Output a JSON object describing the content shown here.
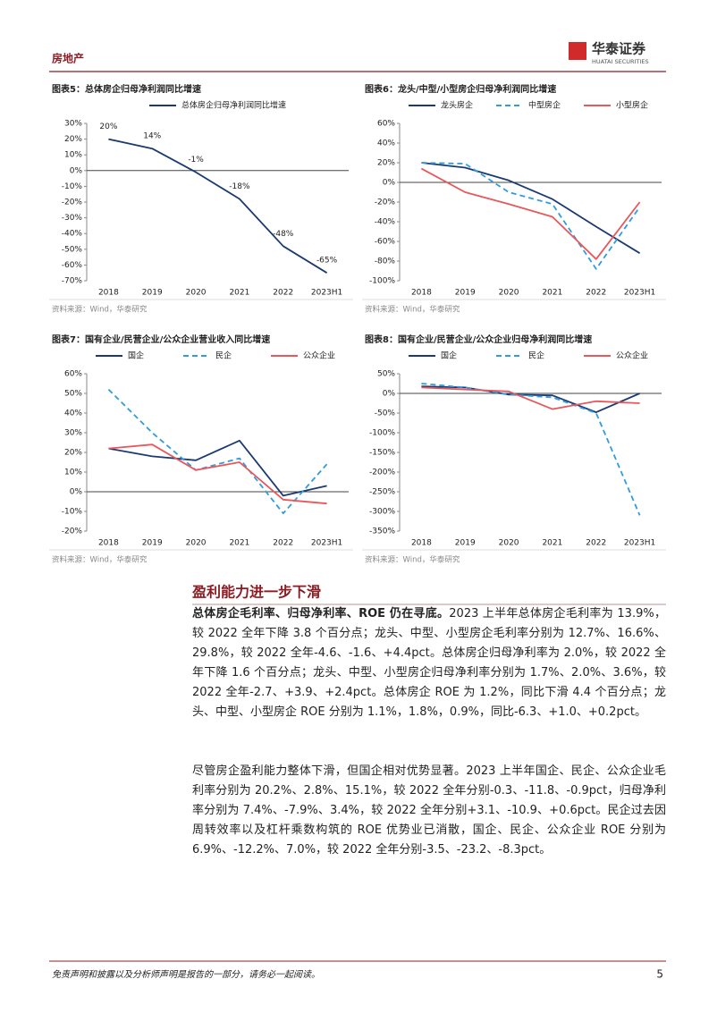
{
  "header": {
    "sector": "房地产",
    "logo_cn": "华泰证券",
    "logo_en": "HUATAI SECURITIES"
  },
  "chart_data": [
    {
      "type": "line",
      "title": "图表5：总体房企归母净利润同比增速",
      "categories": [
        "2018",
        "2019",
        "2020",
        "2021",
        "2022",
        "2023H1"
      ],
      "series": [
        {
          "name": "总体房企归母净利润同比增速",
          "color": "#1b3a73",
          "style": "solid",
          "values": [
            20,
            14,
            -1,
            -18,
            -48,
            -65
          ],
          "value_labels": [
            "20%",
            "14%",
            "-1%",
            "-18%",
            "-48%",
            "-65%"
          ]
        }
      ],
      "ylim": [
        -70,
        30
      ],
      "yticks": [
        {
          "value": -70,
          "label": "-70%"
        },
        {
          "value": -60,
          "label": "-60%"
        },
        {
          "value": -50,
          "label": "-50%"
        },
        {
          "value": -40,
          "label": "-40%"
        },
        {
          "value": -30,
          "label": "-30%"
        },
        {
          "value": -20,
          "label": "-20%"
        },
        {
          "value": -10,
          "label": "-10%"
        },
        {
          "value": 0,
          "label": "0%"
        },
        {
          "value": 10,
          "label": "10%"
        },
        {
          "value": 20,
          "label": "20%"
        },
        {
          "value": 30,
          "label": "30%"
        }
      ],
      "source": "资料来源：Wind，华泰研究"
    },
    {
      "type": "line",
      "title": "图表6：龙头/中型/小型房企归母净利润同比增速",
      "categories": [
        "2018",
        "2019",
        "2020",
        "2021",
        "2022",
        "2023H1"
      ],
      "series": [
        {
          "name": "龙头房企",
          "color": "#1b3a73",
          "style": "solid",
          "values": [
            20,
            15,
            2,
            -17,
            -45,
            -72
          ]
        },
        {
          "name": "中型房企",
          "color": "#2f9be0",
          "style": "dashed",
          "values": [
            20,
            19,
            -10,
            -22,
            -88,
            -25
          ]
        },
        {
          "name": "小型房企",
          "color": "#e8575a",
          "style": "solid",
          "values": [
            14,
            -10,
            -22,
            -35,
            -78,
            -20
          ]
        }
      ],
      "ylim": [
        -100,
        60
      ],
      "yticks": [
        {
          "value": -100,
          "label": "-100%"
        },
        {
          "value": -80,
          "label": "-80%"
        },
        {
          "value": -60,
          "label": "-60%"
        },
        {
          "value": -40,
          "label": "-40%"
        },
        {
          "value": -20,
          "label": "-20%"
        },
        {
          "value": 0,
          "label": "0%"
        },
        {
          "value": 20,
          "label": "20%"
        },
        {
          "value": 40,
          "label": "40%"
        },
        {
          "value": 60,
          "label": "60%"
        }
      ],
      "source": "资料来源：Wind，华泰研究"
    },
    {
      "type": "line",
      "title": "图表7：国有企业/民营企业/公众企业营业收入同比增速",
      "categories": [
        "2018",
        "2019",
        "2020",
        "2021",
        "2022",
        "2023H1"
      ],
      "series": [
        {
          "name": "国企",
          "color": "#1b3a73",
          "style": "solid",
          "values": [
            22,
            18,
            16,
            26,
            -2,
            3
          ]
        },
        {
          "name": "民企",
          "color": "#2f9be0",
          "style": "dashed",
          "values": [
            52,
            30,
            11,
            17,
            -11,
            14
          ]
        },
        {
          "name": "公众企业",
          "color": "#e8575a",
          "style": "solid",
          "values": [
            22,
            24,
            11,
            15,
            -4,
            -6
          ]
        }
      ],
      "ylim": [
        -20,
        60
      ],
      "yticks": [
        {
          "value": -20,
          "label": "-20%"
        },
        {
          "value": -10,
          "label": "-10%"
        },
        {
          "value": 0,
          "label": "0%"
        },
        {
          "value": 10,
          "label": "10%"
        },
        {
          "value": 20,
          "label": "20%"
        },
        {
          "value": 30,
          "label": "30%"
        },
        {
          "value": 40,
          "label": "40%"
        },
        {
          "value": 50,
          "label": "50%"
        },
        {
          "value": 60,
          "label": "60%"
        }
      ],
      "source": "资料来源：Wind，华泰研究"
    },
    {
      "type": "line",
      "title": "图表8：国有企业/民营企业/公众企业归母净利润同比增速",
      "categories": [
        "2018",
        "2019",
        "2020",
        "2021",
        "2022",
        "2023H1"
      ],
      "series": [
        {
          "name": "国企",
          "color": "#1b3a73",
          "style": "solid",
          "values": [
            18,
            15,
            -3,
            -5,
            -48,
            0
          ]
        },
        {
          "name": "民企",
          "color": "#2f9be0",
          "style": "dashed",
          "values": [
            25,
            15,
            -3,
            -10,
            -50,
            -310
          ]
        },
        {
          "name": "公众企业",
          "color": "#e8575a",
          "style": "solid",
          "values": [
            15,
            10,
            5,
            -40,
            -20,
            -25
          ]
        }
      ],
      "ylim": [
        -350,
        50
      ],
      "yticks": [
        {
          "value": -350,
          "label": "-350%"
        },
        {
          "value": -300,
          "label": "-300%"
        },
        {
          "value": -250,
          "label": "-250%"
        },
        {
          "value": -200,
          "label": "-200%"
        },
        {
          "value": -150,
          "label": "-150%"
        },
        {
          "value": -100,
          "label": "-100%"
        },
        {
          "value": -50,
          "label": "-50%"
        },
        {
          "value": 0,
          "label": "0%"
        },
        {
          "value": 50,
          "label": "50%"
        }
      ],
      "source": "资料来源：Wind，华泰研究"
    }
  ],
  "section": {
    "heading": "盈利能力进一步下滑",
    "paragraphs": [
      {
        "lead": "总体房企毛利率、归母净利率、ROE 仍在寻底。",
        "body": "2023 上半年总体房企毛利率为 13.9%，较 2022 全年下降 3.8 个百分点；龙头、中型、小型房企毛利率分别为 12.7%、16.6%、29.8%，较 2022 全年-4.6、-1.6、+4.4pct。总体房企归母净利率为 2.0%，较 2022 全年下降 1.6 个百分点；龙头、中型、小型房企归母净利率分别为 1.7%、2.0%、3.6%，较 2022 全年-2.7、+3.9、+2.4pct。总体房企 ROE 为 1.2%，同比下滑 4.4 个百分点；龙头、中型、小型房企 ROE 分别为 1.1%，1.8%，0.9%，同比-6.3、+1.0、+0.2pct。"
      },
      {
        "body": "尽管房企盈利能力整体下滑，但国企相对优势显著。2023 上半年国企、民企、公众企业毛利率分别为 20.2%、2.8%、15.1%，较 2022 全年分别-0.3、-11.8、-0.9pct，归母净利率分别为 7.4%、-7.9%、3.4%，较 2022 全年分别+3.1、-10.9、+0.6pct。民企过去因周转效率以及杠杆乘数构筑的 ROE 优势业已消散，国企、民企、公众企业 ROE 分别为 6.9%、-12.2%、7.0%，较 2022 全年分别-3.5、-23.2、-8.3pct。"
      }
    ]
  },
  "footer": {
    "disclaimer": "免责声明和披露以及分析师声明是报告的一部分，请务必一起阅读。",
    "page": 5
  }
}
